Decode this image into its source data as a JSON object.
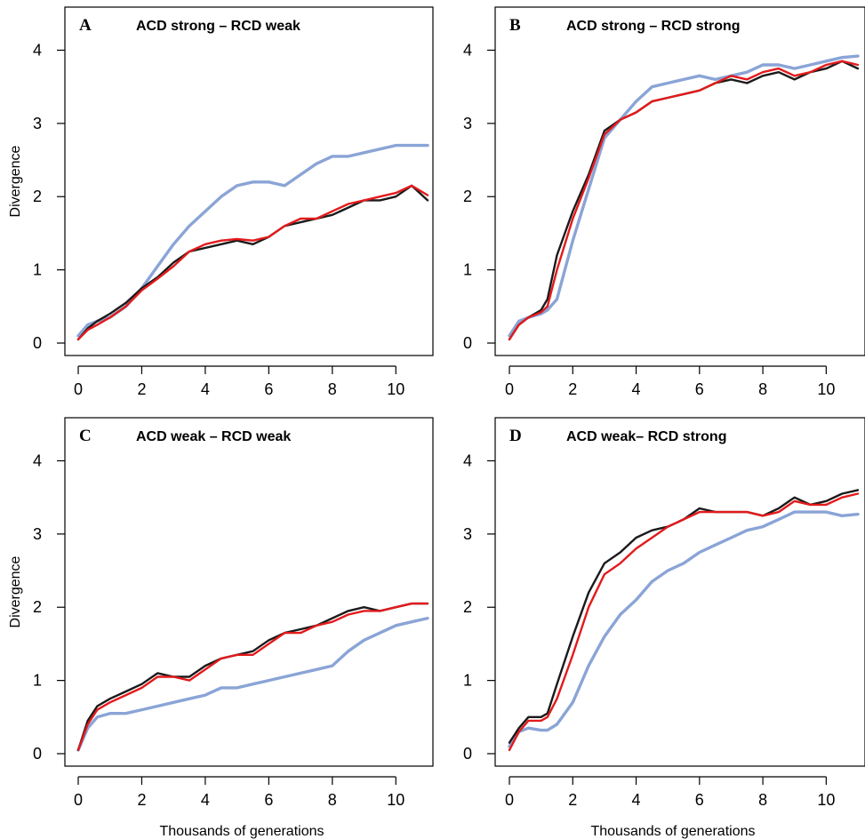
{
  "colors": {
    "black": "#1a1a1a",
    "red": "#e31a1c",
    "blue": "#8aa4d6"
  },
  "shared_xlabel": "Thousands of generations",
  "shared_ylabel": "Divergence",
  "chart_data": [
    {
      "type": "line",
      "panel": "A",
      "title": "ACD strong – RCD weak",
      "ylabel": "Divergence",
      "xlabel": "",
      "xlim": [
        0,
        11
      ],
      "ylim": [
        0,
        4.2
      ],
      "xticks": [
        0,
        2,
        4,
        6,
        8,
        10
      ],
      "yticks": [
        0,
        1,
        2,
        3,
        4
      ],
      "series": [
        {
          "color": "black",
          "x": [
            0,
            0.3,
            0.6,
            1,
            1.5,
            2,
            2.5,
            3,
            3.5,
            4,
            4.5,
            5,
            5.5,
            6,
            6.5,
            7,
            7.5,
            8,
            8.5,
            9,
            9.5,
            10,
            10.5,
            11
          ],
          "y": [
            0.05,
            0.2,
            0.3,
            0.4,
            0.55,
            0.75,
            0.9,
            1.1,
            1.25,
            1.3,
            1.35,
            1.4,
            1.35,
            1.45,
            1.6,
            1.65,
            1.7,
            1.75,
            1.85,
            1.95,
            1.95,
            2.0,
            2.15,
            1.95
          ]
        },
        {
          "color": "red",
          "x": [
            0,
            0.3,
            0.6,
            1,
            1.5,
            2,
            2.5,
            3,
            3.5,
            4,
            4.5,
            5,
            5.5,
            6,
            6.5,
            7,
            7.5,
            8,
            8.5,
            9,
            9.5,
            10,
            10.5,
            11
          ],
          "y": [
            0.05,
            0.18,
            0.25,
            0.35,
            0.5,
            0.72,
            0.88,
            1.05,
            1.25,
            1.35,
            1.4,
            1.42,
            1.4,
            1.45,
            1.6,
            1.7,
            1.7,
            1.8,
            1.9,
            1.95,
            2.0,
            2.05,
            2.15,
            2.02
          ]
        },
        {
          "color": "blue",
          "x": [
            0,
            0.3,
            0.6,
            1,
            1.5,
            2,
            2.5,
            3,
            3.5,
            4,
            4.5,
            5,
            5.5,
            6,
            6.5,
            7,
            7.5,
            8,
            8.5,
            9,
            9.5,
            10,
            10.5,
            11
          ],
          "y": [
            0.1,
            0.25,
            0.3,
            0.35,
            0.5,
            0.75,
            1.05,
            1.35,
            1.6,
            1.8,
            2.0,
            2.15,
            2.2,
            2.2,
            2.15,
            2.3,
            2.45,
            2.55,
            2.55,
            2.6,
            2.65,
            2.7,
            2.7,
            2.7
          ]
        }
      ]
    },
    {
      "type": "line",
      "panel": "B",
      "title": "ACD strong – RCD strong",
      "ylabel": "",
      "xlabel": "",
      "xlim": [
        0,
        11
      ],
      "ylim": [
        0,
        4.2
      ],
      "xticks": [
        0,
        2,
        4,
        6,
        8,
        10
      ],
      "yticks": [
        0,
        1,
        2,
        3,
        4
      ],
      "series": [
        {
          "color": "black",
          "x": [
            0,
            0.3,
            0.6,
            1,
            1.2,
            1.5,
            2,
            2.5,
            3,
            3.5,
            4,
            4.5,
            5,
            5.5,
            6,
            6.5,
            7,
            7.5,
            8,
            8.5,
            9,
            9.5,
            10,
            10.5,
            11
          ],
          "y": [
            0.05,
            0.25,
            0.35,
            0.45,
            0.6,
            1.2,
            1.8,
            2.3,
            2.9,
            3.05,
            3.15,
            3.3,
            3.35,
            3.4,
            3.45,
            3.55,
            3.6,
            3.55,
            3.65,
            3.7,
            3.6,
            3.7,
            3.75,
            3.85,
            3.75
          ]
        },
        {
          "color": "red",
          "x": [
            0,
            0.3,
            0.6,
            1,
            1.2,
            1.5,
            2,
            2.5,
            3,
            3.5,
            4,
            4.5,
            5,
            5.5,
            6,
            6.5,
            7,
            7.5,
            8,
            8.5,
            9,
            9.5,
            10,
            10.5,
            11
          ],
          "y": [
            0.05,
            0.25,
            0.35,
            0.42,
            0.5,
            1.0,
            1.7,
            2.25,
            2.85,
            3.05,
            3.15,
            3.3,
            3.35,
            3.4,
            3.45,
            3.55,
            3.65,
            3.6,
            3.7,
            3.75,
            3.65,
            3.7,
            3.8,
            3.85,
            3.8
          ]
        },
        {
          "color": "blue",
          "x": [
            0,
            0.3,
            0.6,
            1,
            1.2,
            1.5,
            2,
            2.5,
            3,
            3.5,
            4,
            4.5,
            5,
            5.5,
            6,
            6.5,
            7,
            7.5,
            8,
            8.5,
            9,
            9.5,
            10,
            10.5,
            11
          ],
          "y": [
            0.1,
            0.3,
            0.35,
            0.4,
            0.45,
            0.6,
            1.4,
            2.1,
            2.8,
            3.05,
            3.3,
            3.5,
            3.55,
            3.6,
            3.65,
            3.6,
            3.65,
            3.7,
            3.8,
            3.8,
            3.75,
            3.8,
            3.85,
            3.9,
            3.92
          ]
        }
      ]
    },
    {
      "type": "line",
      "panel": "C",
      "title": "ACD weak – RCD weak",
      "ylabel": "Divergence",
      "xlabel": "Thousands of generations",
      "xlim": [
        0,
        11
      ],
      "ylim": [
        0,
        4.2
      ],
      "xticks": [
        0,
        2,
        4,
        6,
        8,
        10
      ],
      "yticks": [
        0,
        1,
        2,
        3,
        4
      ],
      "series": [
        {
          "color": "black",
          "x": [
            0,
            0.3,
            0.6,
            1,
            1.5,
            2,
            2.5,
            3,
            3.5,
            4,
            4.5,
            5,
            5.5,
            6,
            6.5,
            7,
            7.5,
            8,
            8.5,
            9,
            9.5,
            10,
            10.5,
            11
          ],
          "y": [
            0.05,
            0.45,
            0.65,
            0.75,
            0.85,
            0.95,
            1.1,
            1.05,
            1.05,
            1.2,
            1.3,
            1.35,
            1.4,
            1.55,
            1.65,
            1.7,
            1.75,
            1.85,
            1.95,
            2.0,
            1.95,
            2.0,
            2.05,
            2.05
          ]
        },
        {
          "color": "red",
          "x": [
            0,
            0.3,
            0.6,
            1,
            1.5,
            2,
            2.5,
            3,
            3.5,
            4,
            4.5,
            5,
            5.5,
            6,
            6.5,
            7,
            7.5,
            8,
            8.5,
            9,
            9.5,
            10,
            10.5,
            11
          ],
          "y": [
            0.05,
            0.4,
            0.6,
            0.7,
            0.8,
            0.9,
            1.05,
            1.05,
            1.0,
            1.15,
            1.3,
            1.35,
            1.35,
            1.5,
            1.65,
            1.65,
            1.75,
            1.8,
            1.9,
            1.95,
            1.95,
            2.0,
            2.05,
            2.05
          ]
        },
        {
          "color": "blue",
          "x": [
            0,
            0.3,
            0.6,
            1,
            1.5,
            2,
            2.5,
            3,
            3.5,
            4,
            4.5,
            5,
            5.5,
            6,
            6.5,
            7,
            7.5,
            8,
            8.5,
            9,
            9.5,
            10,
            10.5,
            11
          ],
          "y": [
            0.05,
            0.35,
            0.5,
            0.55,
            0.55,
            0.6,
            0.65,
            0.7,
            0.75,
            0.8,
            0.9,
            0.9,
            0.95,
            1.0,
            1.05,
            1.1,
            1.15,
            1.2,
            1.4,
            1.55,
            1.65,
            1.75,
            1.8,
            1.85
          ]
        }
      ]
    },
    {
      "type": "line",
      "panel": "D",
      "title": "ACD weak– RCD strong",
      "ylabel": "",
      "xlabel": "Thousands of generations",
      "xlim": [
        0,
        11
      ],
      "ylim": [
        0,
        4.2
      ],
      "xticks": [
        0,
        2,
        4,
        6,
        8,
        10
      ],
      "yticks": [
        0,
        1,
        2,
        3,
        4
      ],
      "series": [
        {
          "color": "black",
          "x": [
            0,
            0.3,
            0.6,
            1,
            1.2,
            1.5,
            2,
            2.5,
            3,
            3.5,
            4,
            4.5,
            5,
            5.5,
            6,
            6.5,
            7,
            7.5,
            8,
            8.5,
            9,
            9.5,
            10,
            10.5,
            11
          ],
          "y": [
            0.15,
            0.35,
            0.5,
            0.5,
            0.55,
            0.95,
            1.6,
            2.2,
            2.6,
            2.75,
            2.95,
            3.05,
            3.1,
            3.2,
            3.35,
            3.3,
            3.3,
            3.3,
            3.25,
            3.35,
            3.5,
            3.4,
            3.45,
            3.55,
            3.6
          ]
        },
        {
          "color": "red",
          "x": [
            0,
            0.3,
            0.6,
            1,
            1.2,
            1.5,
            2,
            2.5,
            3,
            3.5,
            4,
            4.5,
            5,
            5.5,
            6,
            6.5,
            7,
            7.5,
            8,
            8.5,
            9,
            9.5,
            10,
            10.5,
            11
          ],
          "y": [
            0.05,
            0.3,
            0.45,
            0.45,
            0.5,
            0.75,
            1.35,
            2.0,
            2.45,
            2.6,
            2.8,
            2.95,
            3.1,
            3.2,
            3.3,
            3.3,
            3.3,
            3.3,
            3.25,
            3.3,
            3.45,
            3.4,
            3.4,
            3.5,
            3.55
          ]
        },
        {
          "color": "blue",
          "x": [
            0,
            0.3,
            0.6,
            1,
            1.2,
            1.5,
            2,
            2.5,
            3,
            3.5,
            4,
            4.5,
            5,
            5.5,
            6,
            6.5,
            7,
            7.5,
            8,
            8.5,
            9,
            9.5,
            10,
            10.5,
            11
          ],
          "y": [
            0.1,
            0.3,
            0.35,
            0.32,
            0.32,
            0.4,
            0.7,
            1.2,
            1.6,
            1.9,
            2.1,
            2.35,
            2.5,
            2.6,
            2.75,
            2.85,
            2.95,
            3.05,
            3.1,
            3.2,
            3.3,
            3.3,
            3.3,
            3.25,
            3.27
          ]
        }
      ]
    }
  ]
}
